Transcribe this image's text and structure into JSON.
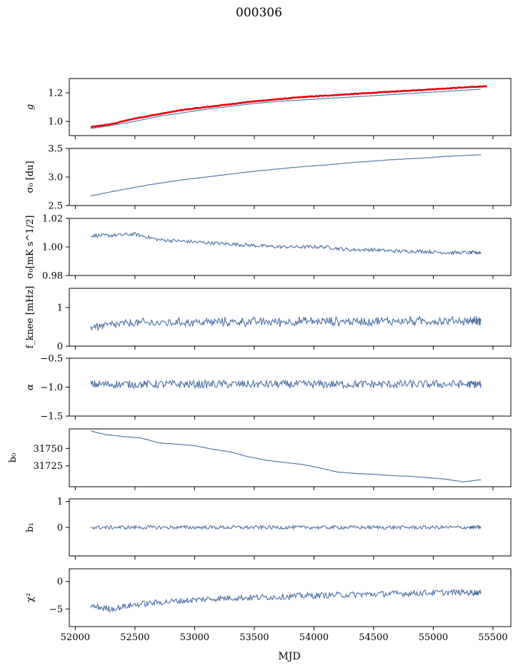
{
  "figure": {
    "title": "000306",
    "xlabel": "MJD"
  },
  "colors": {
    "series": "#4c72a4",
    "overlay": "#e8000b",
    "axes": "#000000"
  },
  "chart_data": [
    {
      "type": "line",
      "panel": "g",
      "ylabel": "g",
      "ylim": [
        0.9,
        1.3
      ],
      "yticks": [
        1.0,
        1.2
      ],
      "yticklabels": [
        "1.0",
        "1.2"
      ],
      "xlim": [
        51950,
        55650
      ],
      "series": [
        {
          "role": "primary",
          "x": [
            52130,
            52300,
            52500,
            52700,
            52900,
            53100,
            53300,
            53500,
            53700,
            53900,
            54100,
            54300,
            54500,
            54700,
            54900,
            55100,
            55300,
            55400
          ],
          "y": [
            0.95,
            0.97,
            1.0,
            1.035,
            1.06,
            1.085,
            1.105,
            1.125,
            1.14,
            1.15,
            1.16,
            1.17,
            1.18,
            1.19,
            1.2,
            1.21,
            1.22,
            1.225
          ]
        },
        {
          "role": "overlay",
          "x": [
            52130,
            52300,
            52500,
            52700,
            52900,
            53100,
            53300,
            53500,
            53700,
            53900,
            54100,
            54300,
            54500,
            54700,
            54900,
            55100,
            55300,
            55450
          ],
          "y": [
            0.96,
            0.98,
            1.02,
            1.05,
            1.08,
            1.1,
            1.12,
            1.14,
            1.155,
            1.17,
            1.18,
            1.19,
            1.2,
            1.21,
            1.22,
            1.23,
            1.24,
            1.245
          ]
        }
      ]
    },
    {
      "type": "line",
      "panel": "sigma0_du",
      "ylabel": "σ₀ [du]",
      "ylim": [
        2.5,
        3.5
      ],
      "yticks": [
        2.5,
        3.0,
        3.5
      ],
      "yticklabels": [
        "2.5",
        "3.0",
        "3.5"
      ],
      "xlim": [
        51950,
        55650
      ],
      "series": [
        {
          "role": "primary",
          "x": [
            52130,
            52300,
            52500,
            52700,
            52900,
            53100,
            53300,
            53500,
            53700,
            53900,
            54100,
            54300,
            54500,
            54700,
            54900,
            55100,
            55300,
            55400
          ],
          "y": [
            2.67,
            2.74,
            2.82,
            2.89,
            2.95,
            3.0,
            3.05,
            3.1,
            3.14,
            3.18,
            3.21,
            3.25,
            3.28,
            3.31,
            3.33,
            3.36,
            3.38,
            3.39
          ]
        }
      ]
    },
    {
      "type": "line",
      "panel": "sigma0_mK",
      "ylabel": "σ₀[mK s^1/2]",
      "ylim": [
        0.98,
        1.02
      ],
      "yticks": [
        0.98,
        1.0,
        1.02
      ],
      "yticklabels": [
        "0.98",
        "1.00",
        "1.02"
      ],
      "xlim": [
        51950,
        55650
      ],
      "series": [
        {
          "role": "primary",
          "x": [
            52130,
            52300,
            52500,
            52700,
            52900,
            53100,
            53300,
            53500,
            53700,
            53900,
            54100,
            54300,
            54500,
            54700,
            54900,
            55100,
            55300,
            55400
          ],
          "y": [
            1.008,
            1.008,
            1.009,
            1.005,
            1.004,
            1.003,
            1.002,
            1.001,
            1.0,
            1.0,
            1.0,
            0.998,
            0.998,
            0.997,
            0.997,
            0.996,
            0.996,
            0.996
          ]
        }
      ]
    },
    {
      "type": "line",
      "panel": "fknee",
      "ylabel": "f_knee [mHz]",
      "ylim": [
        0,
        1.5
      ],
      "yticks": [
        0,
        1
      ],
      "yticklabels": [
        "0",
        "1"
      ],
      "xlim": [
        51950,
        55650
      ],
      "series": [
        {
          "role": "primary",
          "x": [
            52130,
            52300,
            52500,
            52700,
            52900,
            53100,
            53300,
            53500,
            53700,
            53900,
            54100,
            54300,
            54500,
            54700,
            54900,
            55100,
            55300,
            55400
          ],
          "y": [
            0.5,
            0.55,
            0.6,
            0.6,
            0.62,
            0.62,
            0.63,
            0.63,
            0.63,
            0.64,
            0.64,
            0.64,
            0.65,
            0.65,
            0.65,
            0.65,
            0.66,
            0.66
          ]
        }
      ]
    },
    {
      "type": "line",
      "panel": "alpha",
      "ylabel": "α",
      "ylim": [
        -1.5,
        -0.5
      ],
      "yticks": [
        -1.5,
        -1.0,
        -0.5
      ],
      "yticklabels": [
        "−1.5",
        "−1.0",
        "−0.5"
      ],
      "xlim": [
        51950,
        55650
      ],
      "series": [
        {
          "role": "primary",
          "x": [
            52130,
            52300,
            52500,
            52700,
            52900,
            53100,
            53300,
            53500,
            53700,
            53900,
            54100,
            54300,
            54500,
            54700,
            54900,
            55100,
            55300,
            55400
          ],
          "y": [
            -0.95,
            -0.95,
            -0.95,
            -0.95,
            -0.95,
            -0.95,
            -0.95,
            -0.95,
            -0.95,
            -0.95,
            -0.95,
            -0.95,
            -0.95,
            -0.95,
            -0.95,
            -0.95,
            -0.95,
            -0.95
          ]
        }
      ]
    },
    {
      "type": "line",
      "panel": "b0",
      "ylabel": "b₀",
      "ylim": [
        31695,
        31778
      ],
      "yticks": [
        31725,
        31750
      ],
      "yticklabels": [
        "31725",
        "31750"
      ],
      "xlim": [
        51950,
        55650
      ],
      "series": [
        {
          "role": "primary",
          "x": [
            52130,
            52250,
            52400,
            52550,
            52700,
            52850,
            53000,
            53150,
            53300,
            53450,
            53600,
            53750,
            53900,
            54050,
            54200,
            54350,
            54500,
            54650,
            54800,
            54950,
            55100,
            55250,
            55400
          ],
          "y": [
            31775,
            31770,
            31767,
            31765,
            31758,
            31756,
            31754,
            31749,
            31745,
            31738,
            31733,
            31730,
            31727,
            31722,
            31716,
            31714,
            31713,
            31711,
            31710,
            31708,
            31706,
            31702,
            31705
          ]
        }
      ]
    },
    {
      "type": "line",
      "panel": "b1",
      "ylabel": "b₁",
      "ylim": [
        -1.1,
        1.1
      ],
      "yticks": [
        0,
        1
      ],
      "yticklabels": [
        "0",
        "1"
      ],
      "xlim": [
        51950,
        55650
      ],
      "series": [
        {
          "role": "primary",
          "x": [
            52130,
            52300,
            52500,
            52700,
            52900,
            53100,
            53300,
            53500,
            53700,
            53900,
            54100,
            54300,
            54500,
            54700,
            54900,
            55100,
            55300,
            55400
          ],
          "y": [
            0.0,
            0.0,
            0.0,
            0.0,
            0.0,
            0.0,
            0.0,
            0.0,
            0.0,
            0.0,
            0.0,
            0.0,
            0.0,
            0.0,
            0.0,
            0.0,
            0.0,
            0.0
          ]
        }
      ]
    },
    {
      "type": "line",
      "panel": "chi2",
      "ylabel": "χ²",
      "ylim": [
        -8.2,
        2.3
      ],
      "yticks": [
        -5,
        0
      ],
      "yticklabels": [
        "−5",
        "0"
      ],
      "xlim": [
        51950,
        55650
      ],
      "xticks": [
        52000,
        52500,
        53000,
        53500,
        54000,
        54500,
        55000,
        55500
      ],
      "xticklabels": [
        "52000",
        "52500",
        "53000",
        "53500",
        "54000",
        "54500",
        "55000",
        "55500"
      ],
      "series": [
        {
          "role": "primary",
          "x": [
            52130,
            52300,
            52500,
            52700,
            52900,
            53100,
            53300,
            53500,
            53700,
            53900,
            54100,
            54300,
            54500,
            54700,
            54900,
            55100,
            55300,
            55400
          ],
          "y": [
            -4.5,
            -5.0,
            -4.2,
            -3.8,
            -3.5,
            -3.2,
            -3.0,
            -2.9,
            -2.8,
            -2.6,
            -2.5,
            -2.4,
            -2.3,
            -2.2,
            -2.1,
            -2.0,
            -2.0,
            -2.0
          ]
        }
      ]
    }
  ]
}
